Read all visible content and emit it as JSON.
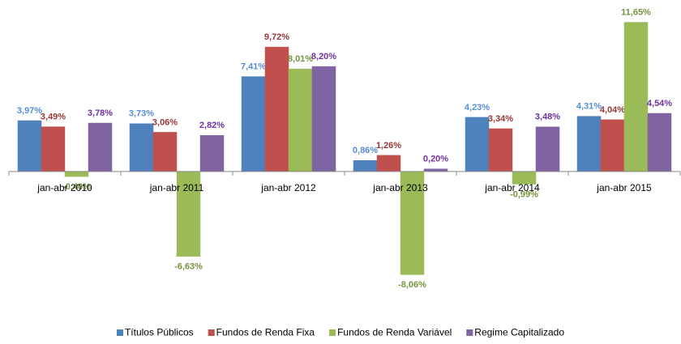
{
  "chart_data": {
    "type": "bar",
    "categories": [
      "jan-abr 2010",
      "jan-abr 2011",
      "jan-abr 2012",
      "jan-abr 2013",
      "jan-abr 2014",
      "jan-abr 2015"
    ],
    "series": [
      {
        "name": "Títulos Públicos",
        "color": "#4f81bd",
        "label_color": "#558ed5",
        "values": [
          3.97,
          3.73,
          7.41,
          0.86,
          4.23,
          4.31
        ],
        "value_labels": [
          "3,97%",
          "3,73%",
          "7,41%",
          "0,86%",
          "4,23%",
          "4,31%"
        ]
      },
      {
        "name": "Fundos de Renda Fixa",
        "color": "#c0504d",
        "label_color": "#953735",
        "values": [
          3.49,
          3.06,
          9.72,
          1.26,
          3.34,
          4.04
        ],
        "value_labels": [
          "3,49%",
          "3,06%",
          "9,72%",
          "1,26%",
          "3,34%",
          "4,04%"
        ]
      },
      {
        "name": "Fundos de Renda Variável",
        "color": "#9bbb59",
        "label_color": "#77933c",
        "values": [
          -0.4,
          -6.63,
          8.01,
          -8.06,
          -0.99,
          11.65
        ],
        "value_labels": [
          "-0,40%",
          "-6,63%",
          "8,01%",
          "-8,06%",
          "-0,99%",
          "11,65%"
        ]
      },
      {
        "name": "Regime Capitalizado",
        "color": "#8064a2",
        "label_color": "#7030a0",
        "values": [
          3.78,
          2.82,
          8.2,
          0.2,
          3.48,
          4.54
        ],
        "value_labels": [
          "3,78%",
          "2,82%",
          "8,20%",
          "0,20%",
          "3,48%",
          "4,54%"
        ]
      }
    ],
    "ylim": [
      -10,
      12
    ],
    "legend": "bottom"
  }
}
